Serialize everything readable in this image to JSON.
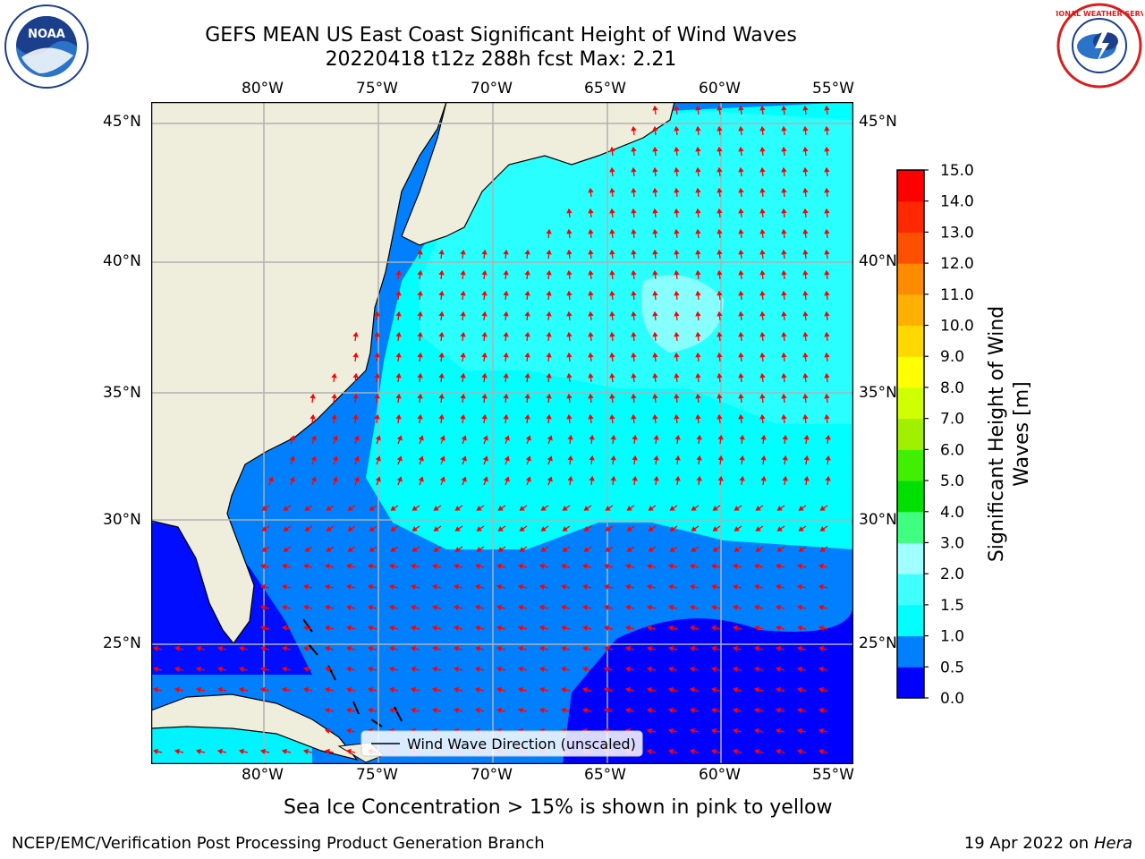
{
  "title_line1": "GEFS MEAN US East Coast Significant Height of Wind Waves",
  "title_line2": "20220418 t12z 288h fcst   Max: 2.21",
  "map": {
    "lon_ticks": [
      "80°W",
      "75°W",
      "70°W",
      "65°W",
      "60°W",
      "55°W"
    ],
    "lat_ticks": [
      "45°N",
      "40°N",
      "35°N",
      "30°N",
      "25°N"
    ],
    "legend_label": "Wind Wave Direction (unscaled)",
    "land_color": "#efeedc",
    "arrow_color": "#ff0000"
  },
  "colorbar": {
    "label": "Significant Height of Wind Waves [m]",
    "ticks": [
      "15.0",
      "14.0",
      "13.0",
      "12.0",
      "11.0",
      "10.0",
      "9.0",
      "8.0",
      "7.0",
      "6.0",
      "5.0",
      "4.0",
      "3.0",
      "2.0",
      "1.5",
      "1.0",
      "0.5",
      "0.0"
    ],
    "colors_bottom_to_top": [
      "#0000ff",
      "#0080ff",
      "#00ffff",
      "#40ffff",
      "#a0ffff",
      "#40ff80",
      "#00e000",
      "#40f000",
      "#a0f000",
      "#d0ff00",
      "#ffff00",
      "#ffd800",
      "#ffb000",
      "#ff8c00",
      "#ff5000",
      "#ff2800",
      "#ff0000"
    ]
  },
  "caption": "Sea Ice Concentration > 15% is shown in pink to yellow",
  "footer_left": "NCEP/EMC/Verification Post Processing Product Generation Branch",
  "footer_date": "19 Apr 2022 on",
  "footer_machine": "Hera",
  "logos": {
    "left_text": "NOAA",
    "right_text": "NATIONAL WEATHER SERVICE"
  }
}
